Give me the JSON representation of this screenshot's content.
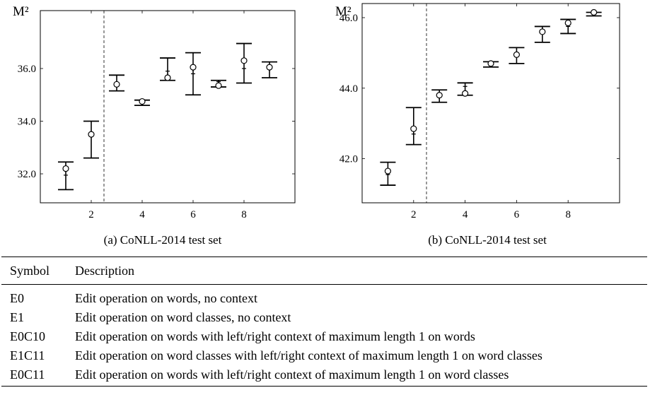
{
  "chart_data": [
    {
      "type": "errorbar",
      "caption": "(a) CoNLL-2014 test set",
      "ylabel": "M²",
      "xlim": [
        0,
        10
      ],
      "ylim": [
        30.9,
        38.2
      ],
      "xticks": [
        2,
        4,
        6,
        8
      ],
      "yticks": [
        32.0,
        34.0,
        36.0
      ],
      "ytick_labels": [
        "32.0",
        "34.0",
        "36.0"
      ],
      "vline": 2.5,
      "grid": false,
      "points": [
        {
          "x": 1,
          "y": 32.2,
          "low": 31.4,
          "high": 32.45,
          "median": 31.95
        },
        {
          "x": 2,
          "y": 33.5,
          "low": 32.6,
          "high": 34.0,
          "median": 33.5
        },
        {
          "x": 3,
          "y": 35.4,
          "low": 35.15,
          "high": 35.75,
          "median": 35.45
        },
        {
          "x": 4,
          "y": 34.75,
          "low": 34.6,
          "high": 34.8,
          "median": 34.7
        },
        {
          "x": 5,
          "y": 35.65,
          "low": 35.55,
          "high": 36.4,
          "median": 35.9
        },
        {
          "x": 6,
          "y": 36.05,
          "low": 35.0,
          "high": 36.6,
          "median": 35.8
        },
        {
          "x": 7,
          "y": 35.35,
          "low": 35.3,
          "high": 35.55,
          "median": 35.5
        },
        {
          "x": 8,
          "y": 36.3,
          "low": 35.45,
          "high": 36.95,
          "median": 36.0
        },
        {
          "x": 9,
          "y": 36.05,
          "low": 35.65,
          "high": 36.25,
          "median": 36.0
        }
      ]
    },
    {
      "type": "errorbar",
      "caption": "(b) CoNLL-2014 test set",
      "ylabel": "M²",
      "xlim": [
        0,
        10
      ],
      "ylim": [
        40.75,
        46.4
      ],
      "xticks": [
        2,
        4,
        6,
        8
      ],
      "yticks": [
        42.0,
        44.0,
        46.0
      ],
      "ytick_labels": [
        "42.0",
        "44.0",
        "46.0"
      ],
      "vline": 2.5,
      "grid": false,
      "points": [
        {
          "x": 1,
          "y": 41.65,
          "low": 41.25,
          "high": 41.9,
          "median": 41.55
        },
        {
          "x": 2,
          "y": 42.85,
          "low": 42.4,
          "high": 43.45,
          "median": 42.7
        },
        {
          "x": 3,
          "y": 43.8,
          "low": 43.6,
          "high": 43.95,
          "median": 43.85
        },
        {
          "x": 4,
          "y": 43.85,
          "low": 43.8,
          "high": 44.15,
          "median": 44.05
        },
        {
          "x": 5,
          "y": 44.7,
          "low": 44.6,
          "high": 44.75,
          "median": 44.7
        },
        {
          "x": 6,
          "y": 44.95,
          "low": 44.7,
          "high": 45.15,
          "median": 44.95
        },
        {
          "x": 7,
          "y": 45.6,
          "low": 45.3,
          "high": 45.75,
          "median": 45.55
        },
        {
          "x": 8,
          "y": 45.85,
          "low": 45.55,
          "high": 45.95,
          "median": 45.75
        },
        {
          "x": 9,
          "y": 46.15,
          "low": 46.05,
          "high": 46.15,
          "median": 46.1
        }
      ]
    }
  ],
  "legend_table": {
    "headers": {
      "symbol": "Symbol",
      "description": "Description"
    },
    "rows": [
      {
        "symbol": "E0",
        "description": "Edit operation on words, no context"
      },
      {
        "symbol": "E1",
        "description": "Edit operation on word classes, no context"
      },
      {
        "symbol": "E0C10",
        "description": "Edit operation on words with left/right context of maximum length 1 on words"
      },
      {
        "symbol": "E1C11",
        "description": "Edit operation on word classes with left/right context of maximum length 1 on word classes"
      },
      {
        "symbol": "E0C11",
        "description": "Edit operation on words with left/right context of maximum length 1 on word classes"
      }
    ]
  }
}
